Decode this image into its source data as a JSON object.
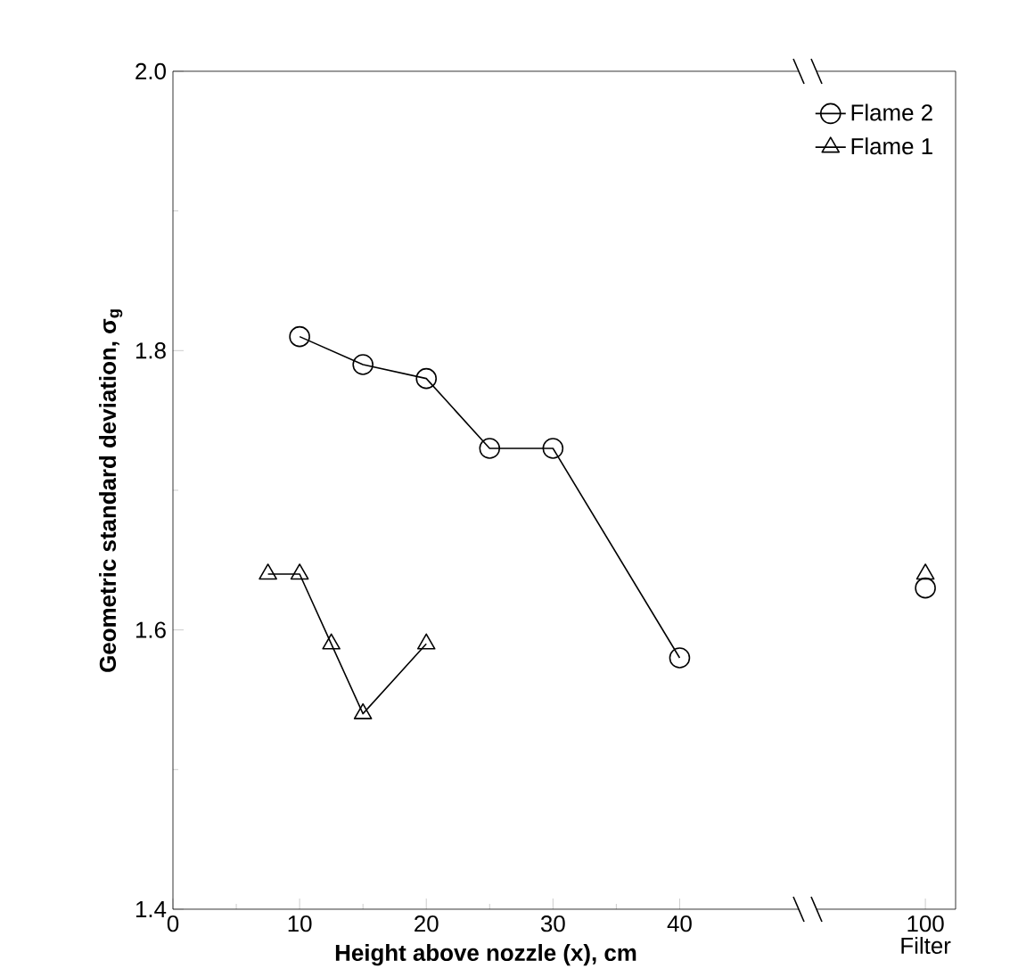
{
  "chart_data": [
    {
      "type": "line",
      "xlabel": "Height above nozzle (x), cm",
      "ylabel": "Geometric standard deviation, σ$_{g}$",
      "xlim": [
        0,
        49.4
      ],
      "xticks": [
        0,
        10,
        20,
        30,
        40
      ],
      "ylim": [
        1.4,
        2.0
      ],
      "yticks": [
        1.4,
        1.6,
        1.8,
        {
          "value": 2.0,
          "label": "2.0"
        }
      ],
      "legend": "top right",
      "line_style": "solid",
      "series": [
        {
          "name": "Flame 2",
          "color": "#000000",
          "marker": "circle",
          "x": [
            10,
            15,
            20,
            25,
            30,
            40
          ],
          "values": [
            1.81,
            1.79,
            1.78,
            1.73,
            1.73,
            1.58
          ]
        },
        {
          "name": "Flame 1",
          "color": "#000000",
          "marker": "triangle",
          "x": [
            7.5,
            10,
            12.5,
            15,
            20
          ],
          "values": [
            1.64,
            1.64,
            1.59,
            1.54,
            1.59
          ]
        }
      ]
    },
    {
      "type": "scatter",
      "xlabel": "Filter",
      "categories": [
        "100"
      ],
      "ylim": [
        1.4,
        2.0
      ],
      "tick_labels": "x",
      "series": [
        {
          "color": "#000000",
          "marker": "circle",
          "values": [
            1.63
          ]
        },
        {
          "color": "#000000",
          "marker": "triangle",
          "values": [
            1.64
          ]
        }
      ]
    }
  ]
}
